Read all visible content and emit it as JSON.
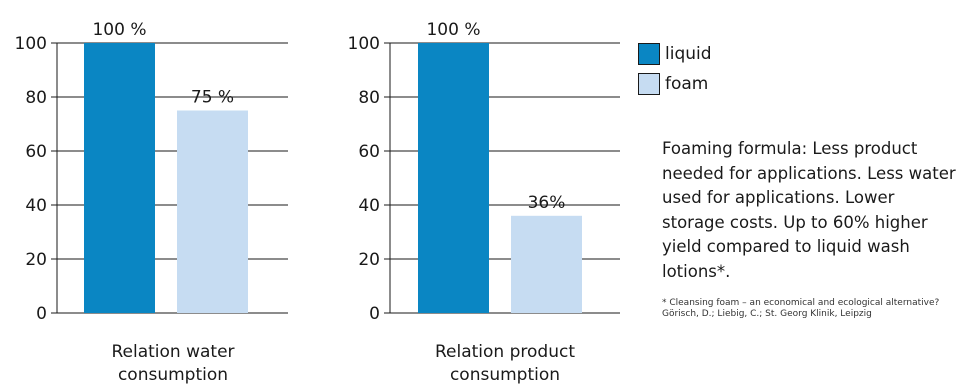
{
  "colors": {
    "liquid": "#0a86c3",
    "foam": "#c6dcf2",
    "axis": "#1a1a1a"
  },
  "legend": [
    {
      "label": "liquid",
      "color": "#0a86c3"
    },
    {
      "label": "foam",
      "color": "#c6dcf2"
    }
  ],
  "description": "Foaming formula: Less product needed for applications. Less water used for applications. Lower storage costs. Up to 60% higher yield compared to liquid wash lotions*.",
  "footnote": "* Cleansing foam – an economical and ecological alternative? Görisch, D.; Liebig, C.; St. Georg Klinik, Leipzig",
  "chart_data": [
    {
      "type": "bar",
      "categories": [
        "liquid",
        "foam"
      ],
      "values": [
        100,
        75
      ],
      "value_labels": [
        "100 %",
        "75 %"
      ],
      "xlabel_lines": [
        "Relation water",
        "consumption"
      ],
      "ylim": [
        0,
        100
      ],
      "yticks": [
        0,
        20,
        40,
        60,
        80,
        100
      ],
      "grid": true
    },
    {
      "type": "bar",
      "categories": [
        "liquid",
        "foam"
      ],
      "values": [
        100,
        36
      ],
      "value_labels": [
        "100 %",
        "36%"
      ],
      "xlabel_lines": [
        "Relation product",
        "consumption"
      ],
      "ylim": [
        0,
        100
      ],
      "yticks": [
        0,
        20,
        40,
        60,
        80,
        100
      ],
      "grid": true
    }
  ]
}
